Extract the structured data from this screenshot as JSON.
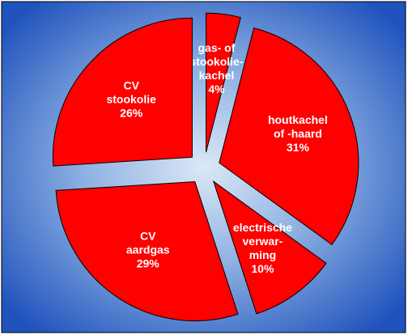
{
  "chart_data": {
    "type": "pie",
    "categories": [
      [
        "gas- of",
        "stookolie-",
        "kachel"
      ],
      [
        "houtkachel",
        "of -haard"
      ],
      [
        "electrische",
        "verwar-",
        "ming"
      ],
      [
        "CV",
        "aardgas"
      ],
      [
        "CV",
        "stookolie"
      ]
    ],
    "values": [
      4,
      31,
      10,
      29,
      26
    ],
    "value_labels": [
      "4%",
      "31%",
      "10%",
      "29%",
      "26%"
    ],
    "color": "#ff0000"
  }
}
